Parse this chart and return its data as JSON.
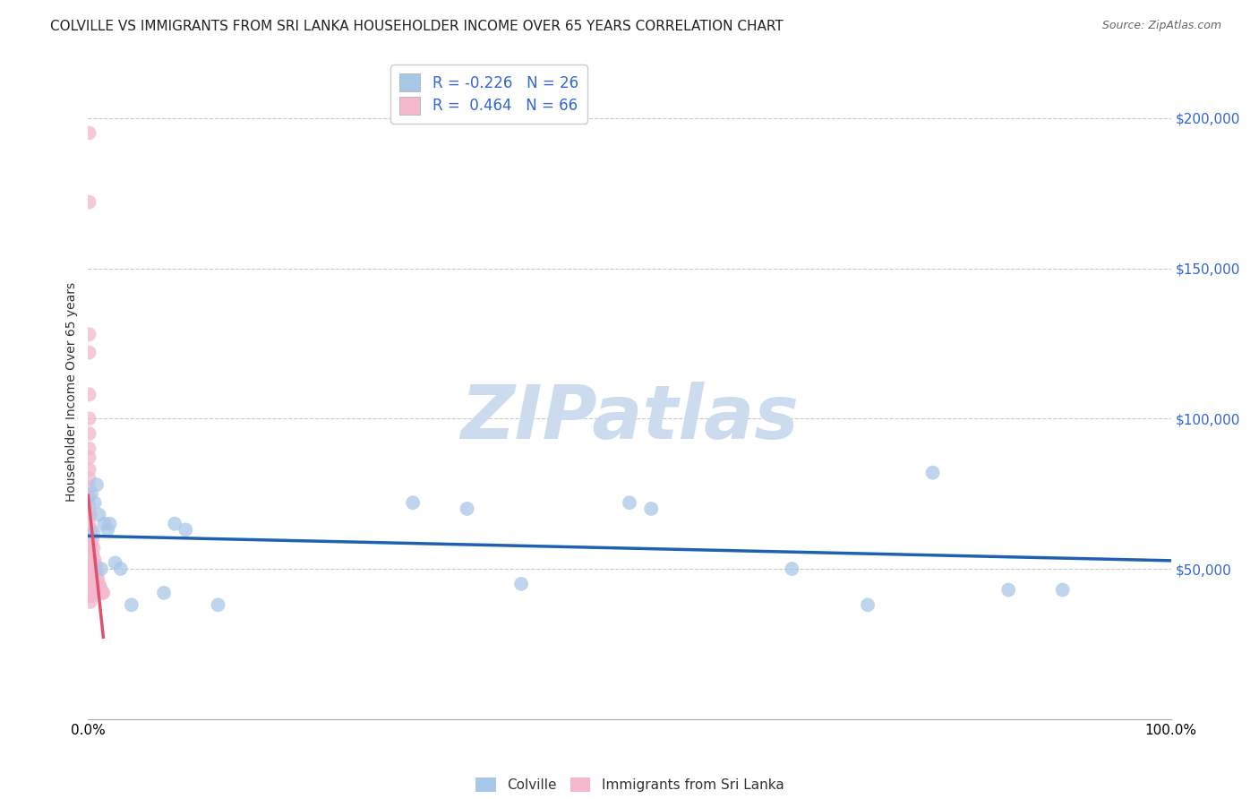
{
  "title": "COLVILLE VS IMMIGRANTS FROM SRI LANKA HOUSEHOLDER INCOME OVER 65 YEARS CORRELATION CHART",
  "source": "Source: ZipAtlas.com",
  "ylabel": "Householder Income Over 65 years",
  "watermark": "ZIPatlas",
  "colville_R": -0.226,
  "colville_N": 26,
  "srilanka_R": 0.464,
  "srilanka_N": 66,
  "colville_color": "#a8c8e8",
  "srilanka_color": "#f4b8cc",
  "colville_line_color": "#2060b0",
  "srilanka_line_color": "#e05070",
  "srilanka_dash_color": "#e090a8",
  "colville_points": [
    [
      0.003,
      75000
    ],
    [
      0.005,
      62000
    ],
    [
      0.006,
      72000
    ],
    [
      0.008,
      78000
    ],
    [
      0.01,
      68000
    ],
    [
      0.012,
      50000
    ],
    [
      0.015,
      65000
    ],
    [
      0.018,
      63000
    ],
    [
      0.02,
      65000
    ],
    [
      0.025,
      52000
    ],
    [
      0.03,
      50000
    ],
    [
      0.04,
      38000
    ],
    [
      0.07,
      42000
    ],
    [
      0.08,
      65000
    ],
    [
      0.09,
      63000
    ],
    [
      0.12,
      38000
    ],
    [
      0.3,
      72000
    ],
    [
      0.35,
      70000
    ],
    [
      0.4,
      45000
    ],
    [
      0.5,
      72000
    ],
    [
      0.52,
      70000
    ],
    [
      0.65,
      50000
    ],
    [
      0.72,
      38000
    ],
    [
      0.78,
      82000
    ],
    [
      0.85,
      43000
    ],
    [
      0.9,
      43000
    ]
  ],
  "srilanka_points": [
    [
      0.001,
      195000
    ],
    [
      0.001,
      172000
    ],
    [
      0.001,
      128000
    ],
    [
      0.001,
      122000
    ],
    [
      0.001,
      108000
    ],
    [
      0.001,
      100000
    ],
    [
      0.001,
      95000
    ],
    [
      0.001,
      90000
    ],
    [
      0.001,
      87000
    ],
    [
      0.001,
      83000
    ],
    [
      0.001,
      80000
    ],
    [
      0.001,
      77000
    ],
    [
      0.001,
      74000
    ],
    [
      0.001,
      71000
    ],
    [
      0.001,
      68000
    ],
    [
      0.001,
      65000
    ],
    [
      0.001,
      62000
    ],
    [
      0.001,
      59000
    ],
    [
      0.001,
      57000
    ],
    [
      0.001,
      55000
    ],
    [
      0.001,
      53000
    ],
    [
      0.001,
      51000
    ],
    [
      0.001,
      49000
    ],
    [
      0.001,
      47000
    ],
    [
      0.001,
      45000
    ],
    [
      0.001,
      43000
    ],
    [
      0.001,
      41000
    ],
    [
      0.002,
      68000
    ],
    [
      0.002,
      62000
    ],
    [
      0.002,
      57000
    ],
    [
      0.002,
      53000
    ],
    [
      0.002,
      49000
    ],
    [
      0.002,
      46000
    ],
    [
      0.002,
      43000
    ],
    [
      0.002,
      41000
    ],
    [
      0.002,
      39000
    ],
    [
      0.003,
      63000
    ],
    [
      0.003,
      58000
    ],
    [
      0.003,
      53000
    ],
    [
      0.003,
      48000
    ],
    [
      0.003,
      44000
    ],
    [
      0.003,
      41000
    ],
    [
      0.004,
      60000
    ],
    [
      0.004,
      55000
    ],
    [
      0.004,
      50000
    ],
    [
      0.004,
      46000
    ],
    [
      0.004,
      43000
    ],
    [
      0.005,
      57000
    ],
    [
      0.005,
      52000
    ],
    [
      0.005,
      48000
    ],
    [
      0.006,
      53000
    ],
    [
      0.006,
      49000
    ],
    [
      0.006,
      46000
    ],
    [
      0.007,
      51000
    ],
    [
      0.007,
      47000
    ],
    [
      0.008,
      49000
    ],
    [
      0.008,
      46000
    ],
    [
      0.009,
      47000
    ],
    [
      0.009,
      44000
    ],
    [
      0.01,
      45000
    ],
    [
      0.01,
      43000
    ],
    [
      0.011,
      44000
    ],
    [
      0.011,
      42000
    ],
    [
      0.012,
      43000
    ],
    [
      0.013,
      42000
    ],
    [
      0.014,
      42000
    ]
  ],
  "yticks": [
    0,
    50000,
    100000,
    150000,
    200000
  ],
  "yticklabels_right": [
    "",
    "$50,000",
    "$100,000",
    "$150,000",
    "$200,000"
  ],
  "ylim": [
    0,
    218000
  ],
  "xlim": [
    0.0,
    1.0
  ],
  "grid_color": "#bbbbbb",
  "title_fontsize": 11,
  "source_fontsize": 9,
  "legend_fontsize": 12,
  "ytick_fontsize": 11,
  "xtick_fontsize": 11,
  "watermark_color": "#ccdcee",
  "watermark_fontsize": 60,
  "blue_text_color": "#3366cc"
}
